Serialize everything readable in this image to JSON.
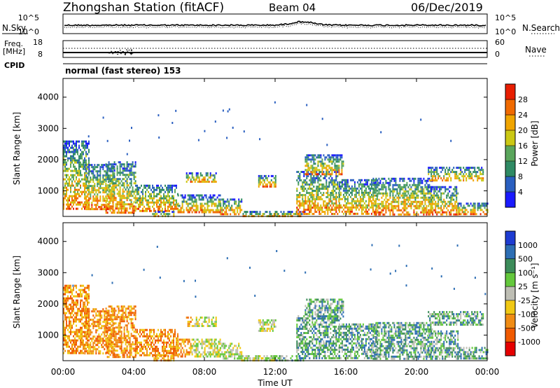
{
  "header": {
    "station": "Zhongshan Station (fitACF)",
    "beam": "Beam 04",
    "date": "06/Dec/2019",
    "mode": "normal (fast stereo) 153"
  },
  "side_labels": {
    "nsky": "N.Sky",
    "freq": "Freq.",
    "freq_unit": "[MHz]",
    "cpid": "CPID",
    "nsearch": "N.Search",
    "nave": "Nave"
  },
  "small_axes": {
    "noise_left": [
      "10^5",
      "10^0"
    ],
    "noise_right": [
      "10^5",
      "10^0"
    ],
    "freq_left": [
      "18",
      "8"
    ],
    "nave_right": [
      "60",
      "0"
    ]
  },
  "chart_data": [
    {
      "type": "heatmap",
      "panel": "power",
      "xlabel": "",
      "ylabel": "Slant Range [km]",
      "ylim": [
        180,
        4600
      ],
      "y_ticks": [
        1000,
        2000,
        3000,
        4000
      ],
      "colorbar": {
        "label": "Power [dB]",
        "ticks": [
          "4",
          "8",
          "12",
          "16",
          "20",
          "24",
          "28"
        ],
        "colors": [
          "#1a1aff",
          "#2a5fc0",
          "#2f8a64",
          "#5aa65c",
          "#cbc814",
          "#f0a500",
          "#f06a00",
          "#e81e00"
        ]
      }
    },
    {
      "type": "heatmap",
      "panel": "velocity",
      "xlabel": "Time UT",
      "ylabel": "Slant Range [km]",
      "ylim": [
        180,
        4600
      ],
      "y_ticks": [
        1000,
        2000,
        3000,
        4000
      ],
      "x_ticks": [
        "00:00",
        "04:00",
        "08:00",
        "12:00",
        "16:00",
        "20:00",
        "00:00"
      ],
      "colorbar": {
        "label": "Velocity [m s⁻¹]",
        "ticks": [
          "1000",
          "500",
          "100",
          "25",
          "-25",
          "-100",
          "-500",
          "-1000"
        ],
        "colors": [
          "#1e3cd2",
          "#2d6eb4",
          "#3c8c5a",
          "#64c83c",
          "#bebeb4",
          "#f0c814",
          "#f08c14",
          "#f05a00",
          "#e60000"
        ]
      }
    }
  ]
}
